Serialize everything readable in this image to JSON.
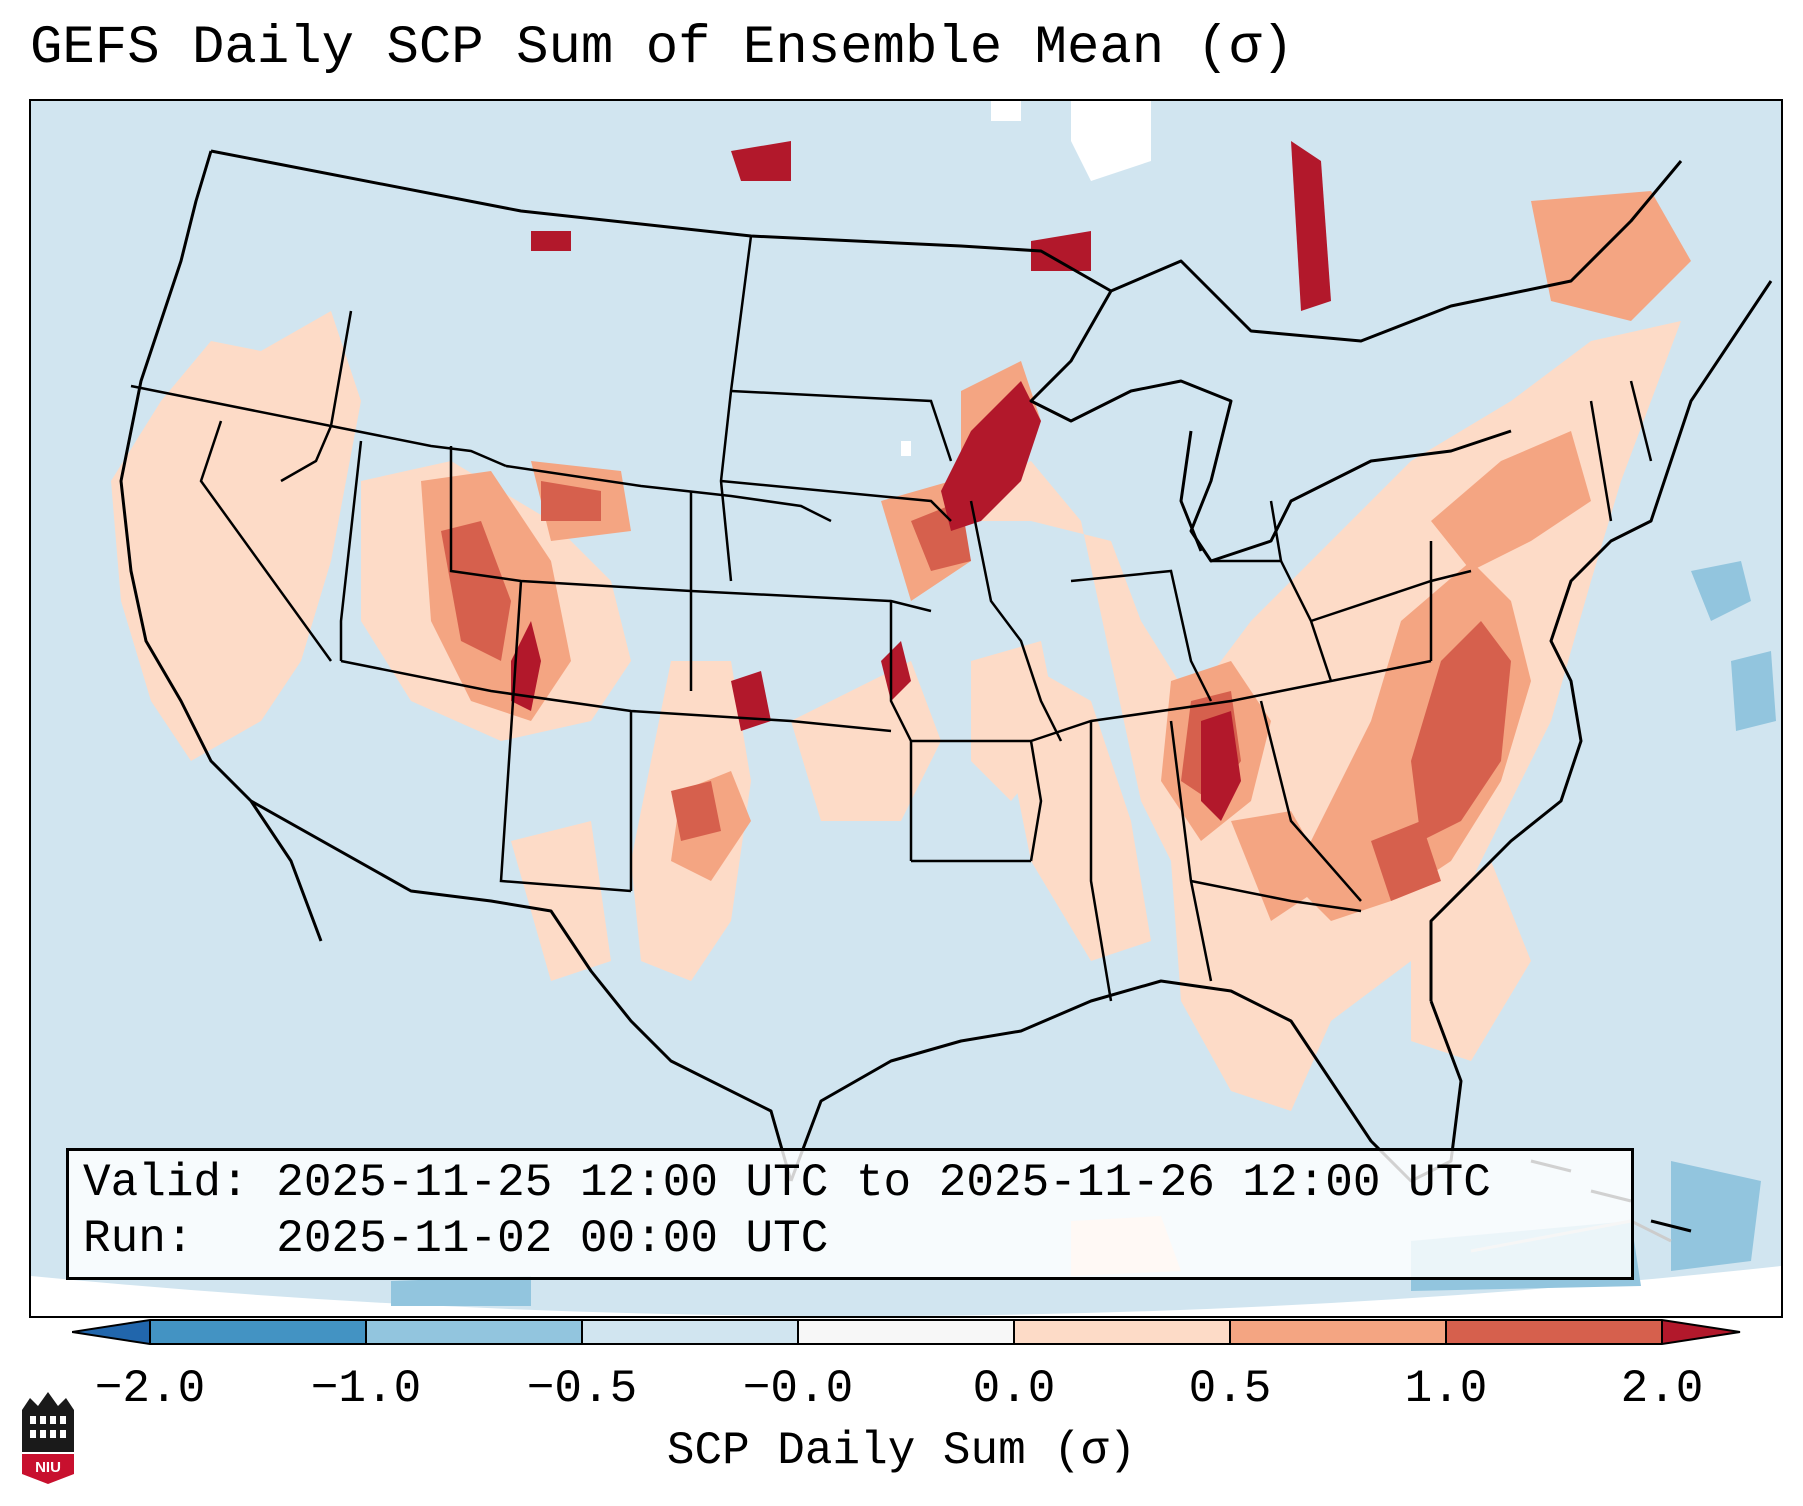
{
  "title": "GEFS Daily SCP Sum of Ensemble Mean (σ)",
  "info": {
    "valid_label": "Valid:",
    "valid_value": "2025-11-25 12:00 UTC to 2025-11-26 12:00 UTC",
    "run_label": "Run:",
    "run_value": "2025-11-02 00:00 UTC"
  },
  "colorbar": {
    "label": "SCP Daily Sum (σ)",
    "ticks": [
      "−2.0",
      "−1.0",
      "−0.5",
      "−0.0",
      "0.0",
      "0.5",
      "1.0",
      "2.0"
    ],
    "bins": [
      {
        "range": "< -2.0",
        "color": "#2166ac"
      },
      {
        "range": "-2.0 to -1.0",
        "color": "#4393c3"
      },
      {
        "range": "-1.0 to -0.5",
        "color": "#92c5de"
      },
      {
        "range": "-0.5 to -0.0",
        "color": "#d1e5f0"
      },
      {
        "range": "-0.0 to 0.0",
        "color": "#f7f7f7"
      },
      {
        "range": "0.0 to 0.5",
        "color": "#fddbc7"
      },
      {
        "range": "0.5 to 1.0",
        "color": "#f4a582"
      },
      {
        "range": "1.0 to 2.0",
        "color": "#d6604d"
      },
      {
        "range": "> 2.0",
        "color": "#b2182b"
      }
    ]
  },
  "map": {
    "region": "Contiguous United States",
    "background_color": "#d1e5f0",
    "notable_features": [
      "Enhanced SCP over Southeast and Mid-Atlantic",
      "Narrow band over Missouri and Minnesota",
      "High values over Utah and Colorado"
    ]
  },
  "logo": {
    "text": "NIU"
  }
}
